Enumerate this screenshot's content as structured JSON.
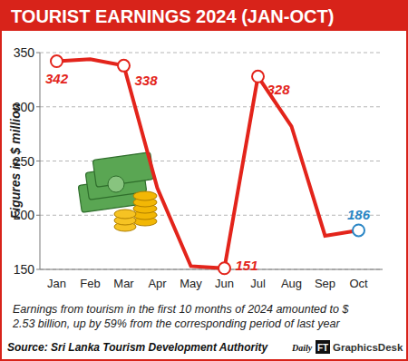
{
  "chart_data": {
    "type": "line",
    "title": "TOURIST EARNINGS 2024 (JAN-OCT)",
    "y_label": "Figures in $ million",
    "categories": [
      "Jan",
      "Feb",
      "Mar",
      "Apr",
      "May",
      "Jun",
      "Jul",
      "Aug",
      "Sep",
      "Oct"
    ],
    "values": [
      342,
      344,
      338,
      225,
      153,
      151,
      328,
      282,
      181,
      186
    ],
    "value_labels": [
      "342",
      null,
      "338",
      null,
      null,
      "151",
      "328",
      null,
      null,
      "186"
    ],
    "color": "#e3241b",
    "colors": [
      "#e3241b",
      "#e3241b",
      "#e3241b",
      "#e3241b",
      "#e3241b",
      "#e3241b",
      "#e3241b",
      "#e3241b",
      "#e3241b",
      "#2b86c5"
    ],
    "marker": "circle",
    "ylim": [
      150,
      350
    ],
    "yticks": [
      150,
      200,
      250,
      300,
      350
    ],
    "grid": true,
    "data_labels": true,
    "note": [
      "Earnings from tourism in the first 10 months of 2024 amounted to $",
      "2.53 billion, up by 59% from the corresponding period of last year"
    ],
    "source": "Source: Sri Lanka Tourism Development Authority",
    "credit": [
      "Daily",
      "FT",
      "GraphicsDesk"
    ]
  }
}
